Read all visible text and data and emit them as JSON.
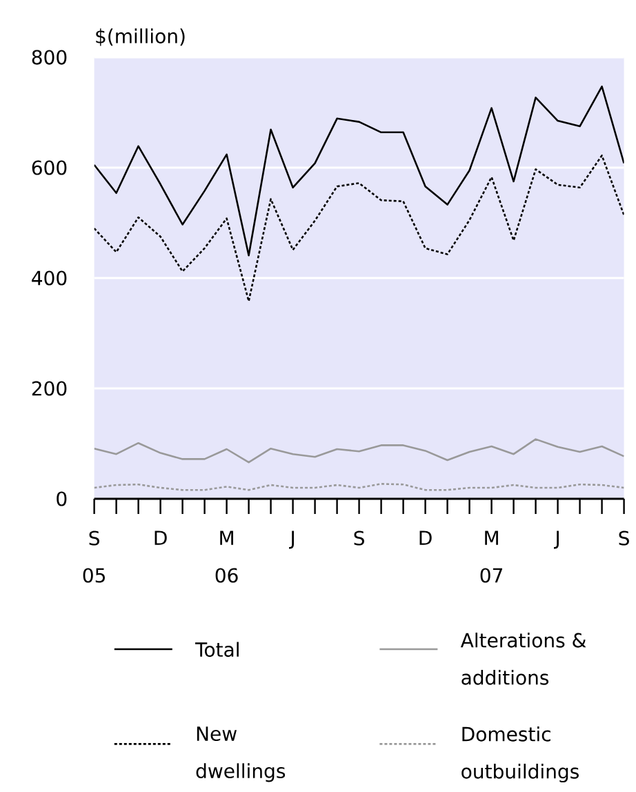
{
  "chart_data": {
    "type": "line",
    "ylabel": "$(million)",
    "categories": [
      "S",
      null,
      null,
      "D",
      null,
      null,
      "M",
      null,
      null,
      "J",
      null,
      null,
      "S",
      null,
      null,
      "D",
      null,
      null,
      "M",
      null,
      null,
      "J",
      null,
      null,
      "S"
    ],
    "x2lim": [
      "2005-09",
      "2007-09"
    ],
    "x2ticks": [
      {
        "value": "2005-09",
        "label": "05"
      },
      {
        "value": "2006-03",
        "label": "06"
      },
      {
        "value": "2007-03",
        "label": "07"
      }
    ],
    "ylim": [
      0,
      800
    ],
    "yticks": [
      0,
      200,
      400,
      600,
      800
    ],
    "grid": "y",
    "legend": "bottom",
    "series": [
      {
        "name": "Total",
        "color": "#000000",
        "line_style": "solid",
        "values": [
          605,
          554,
          639,
          570,
          497,
          558,
          624,
          441,
          669,
          564,
          608,
          689,
          683,
          664,
          664,
          566,
          533,
          595,
          708,
          575,
          727,
          685,
          675,
          747,
          608
        ]
      },
      {
        "name": "Alterations & additions",
        "color": "#999999",
        "line_style": "solid",
        "values": [
          91,
          81,
          101,
          83,
          72,
          72,
          90,
          66,
          91,
          81,
          76,
          90,
          86,
          97,
          97,
          87,
          70,
          85,
          95,
          81,
          108,
          94,
          85,
          95,
          77
        ]
      },
      {
        "name": "New dwellings",
        "color": "#000000",
        "line_style": "dotted",
        "values": [
          490,
          447,
          510,
          475,
          412,
          454,
          508,
          358,
          543,
          451,
          504,
          566,
          572,
          541,
          539,
          454,
          443,
          505,
          583,
          468,
          597,
          569,
          564,
          622,
          514
        ]
      },
      {
        "name": "Domestic outbuildings",
        "color": "#999999",
        "line_style": "dotted",
        "values": [
          20,
          25,
          26,
          20,
          16,
          16,
          22,
          16,
          25,
          20,
          20,
          25,
          20,
          27,
          26,
          16,
          16,
          20,
          20,
          25,
          20,
          20,
          26,
          25,
          20
        ]
      }
    ]
  }
}
